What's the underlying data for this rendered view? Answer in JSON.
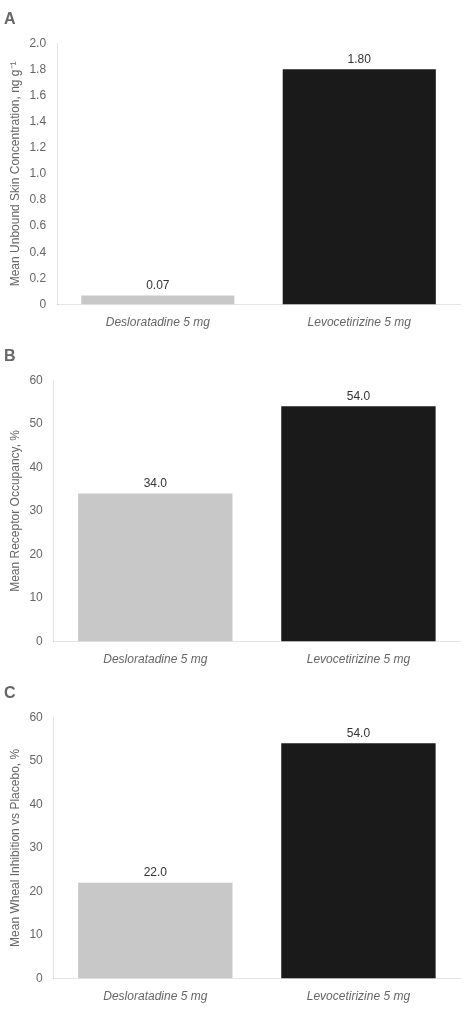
{
  "chart_data": [
    {
      "type": "bar",
      "title": "A",
      "ylabel": "Mean Unbound Skin Concentration, ng g⁻¹",
      "categories": [
        "Desloratadine 5 mg",
        "Levocetirizine 5 mg"
      ],
      "values": [
        0.07,
        1.8
      ],
      "value_labels": [
        "0.07",
        "1.80"
      ],
      "colors": [
        "#c8c8c8",
        "#1a1a1a"
      ],
      "ylim": [
        0,
        2.0
      ],
      "yticks": [
        0,
        0.2,
        0.4,
        0.6,
        0.8,
        {
          "value": 1,
          "label": "1.0"
        },
        1.2,
        1.4,
        1.6,
        1.8,
        {
          "value": 2,
          "label": "2.0"
        }
      ],
      "grid": false,
      "data_labels": true
    },
    {
      "type": "bar",
      "title": "B",
      "ylabel": "Mean Receptor Occupancy, %",
      "categories": [
        "Desloratadine 5 mg",
        "Levocetirizine 5 mg"
      ],
      "values": [
        34.0,
        54.0
      ],
      "value_labels": [
        "34.0",
        "54.0"
      ],
      "colors": [
        "#c8c8c8",
        "#1a1a1a"
      ],
      "ylim": [
        0,
        60
      ],
      "yticks": [
        0,
        10,
        20,
        30,
        40,
        50,
        60
      ],
      "grid": false,
      "data_labels": true
    },
    {
      "type": "bar",
      "title": "C",
      "ylabel": "Mean Wheal Inhibition vs Placebo, %",
      "categories": [
        "Desloratadine 5 mg",
        "Levocetirizine 5 mg"
      ],
      "values": [
        22.0,
        54.0
      ],
      "value_labels": [
        "22.0",
        "54.0"
      ],
      "colors": [
        "#c8c8c8",
        "#1a1a1a"
      ],
      "ylim": [
        0,
        60
      ],
      "yticks": [
        0,
        10,
        20,
        30,
        40,
        50,
        60
      ],
      "grid": false,
      "data_labels": true
    }
  ]
}
